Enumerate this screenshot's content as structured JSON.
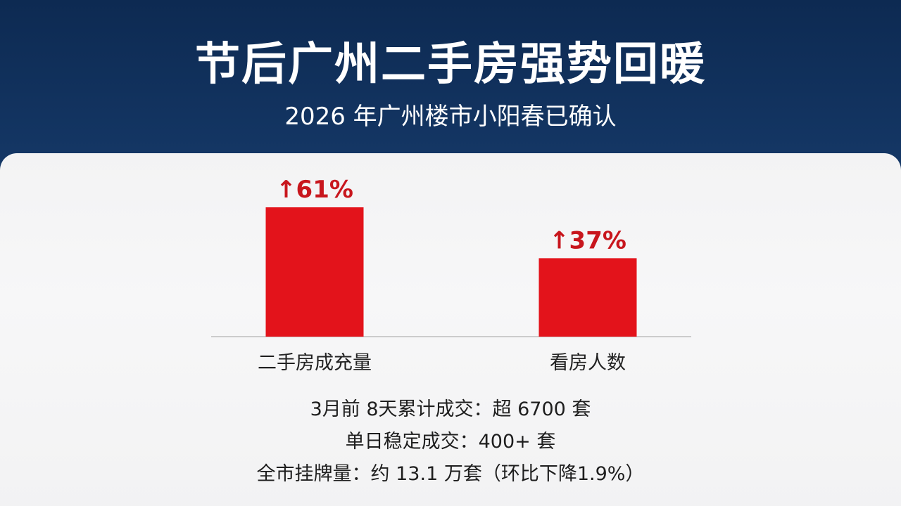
{
  "header": {
    "title": "节后广州二手房强势回暖",
    "subtitle": "2026 年广州楼市小阳春已确认"
  },
  "colors": {
    "background_top": "#0d2a52",
    "bar": "#e3131b",
    "value_text": "#c8161d",
    "panel": "#f4f4f5"
  },
  "chart_data": {
    "type": "bar",
    "categories": [
      "二手房成充量",
      "看房人数"
    ],
    "values": [
      61,
      37
    ],
    "value_labels": [
      "↑61%",
      "↑37%"
    ],
    "title": "",
    "xlabel": "",
    "ylabel": "",
    "ylim": [
      0,
      61
    ],
    "grid": false
  },
  "stats": [
    "3月前 8天累计成交：超 6700 套",
    "单日稳定成交：400+ 套",
    "全市挂牌量：约 13.1 万套（环比下降1.9%）"
  ]
}
